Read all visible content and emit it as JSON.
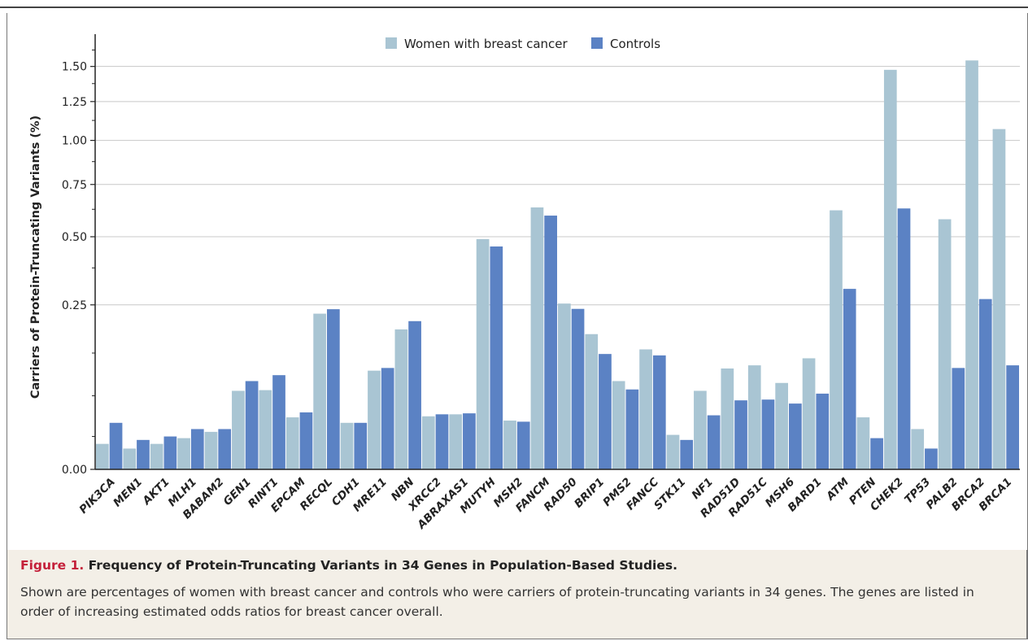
{
  "colors": {
    "cases": "#a9c5d3",
    "controls": "#5b82c4",
    "gridline": "#c8c8c8",
    "caption_bg": "#f3efe7",
    "figure_label": "#c4203a"
  },
  "caption": {
    "label": "Figure 1.",
    "title": "Frequency of Protein-Truncating Variants in 34 Genes in Population-Based Studies.",
    "text": "Shown are percentages of women with breast cancer and controls who were carriers of protein-truncating variants in 34 genes. The genes are listed in order of increasing estimated odds ratios for breast cancer overall."
  },
  "chart_data": {
    "type": "bar",
    "title": "",
    "xlabel": "",
    "ylabel": "Carriers of Protein-Truncating Variants (%)",
    "yscale": "sqrt",
    "ylim": [
      0,
      1.75
    ],
    "yticks": [
      {
        "value": 0,
        "label": "0.00"
      },
      {
        "value": 0.25,
        "label": "0.25"
      },
      {
        "value": 0.5,
        "label": "0.50"
      },
      {
        "value": 0.75,
        "label": "0.75"
      },
      {
        "value": 1.0,
        "label": "1.00"
      },
      {
        "value": 1.25,
        "label": "1.25"
      },
      {
        "value": 1.5,
        "label": "1.50"
      }
    ],
    "minor_yticks": [
      0.01,
      0.05,
      0.125,
      0.375,
      0.625,
      0.875,
      1.125,
      1.375,
      1.625
    ],
    "grid": true,
    "legend_position": "top-center",
    "categories": [
      "PIK3CA",
      "MEN1",
      "AKT1",
      "MLH1",
      "BABAM2",
      "GEN1",
      "RINT1",
      "EPCAM",
      "RECQL",
      "CDH1",
      "MRE11",
      "NBN",
      "XRCC2",
      "ABRAXAS1",
      "MUTYH",
      "MSH2",
      "FANCM",
      "RAD50",
      "BRIP1",
      "PMS2",
      "FANCC",
      "STK11",
      "NF1",
      "RAD51D",
      "RAD51C",
      "MSH6",
      "BARD1",
      "ATM",
      "PTEN",
      "CHEK2",
      "TP53",
      "PALB2",
      "BRCA2",
      "BRCA1"
    ],
    "series": [
      {
        "name": "Women with breast cancer",
        "values": [
          0.006,
          0.004,
          0.006,
          0.009,
          0.013,
          0.057,
          0.058,
          0.025,
          0.224,
          0.02,
          0.09,
          0.181,
          0.026,
          0.028,
          0.49,
          0.022,
          0.634,
          0.254,
          0.169,
          0.072,
          0.133,
          0.011,
          0.057,
          0.094,
          0.1,
          0.069,
          0.114,
          0.62,
          0.025,
          1.475,
          0.015,
          0.578,
          1.545,
          1.07
        ]
      },
      {
        "name": "Controls",
        "values": [
          0.02,
          0.008,
          0.01,
          0.015,
          0.015,
          0.072,
          0.082,
          0.03,
          0.237,
          0.02,
          0.095,
          0.203,
          0.028,
          0.029,
          0.459,
          0.021,
          0.595,
          0.238,
          0.123,
          0.059,
          0.12,
          0.008,
          0.027,
          0.044,
          0.045,
          0.04,
          0.053,
          0.301,
          0.009,
          0.629,
          0.004,
          0.095,
          0.268,
          0.1
        ]
      }
    ]
  }
}
